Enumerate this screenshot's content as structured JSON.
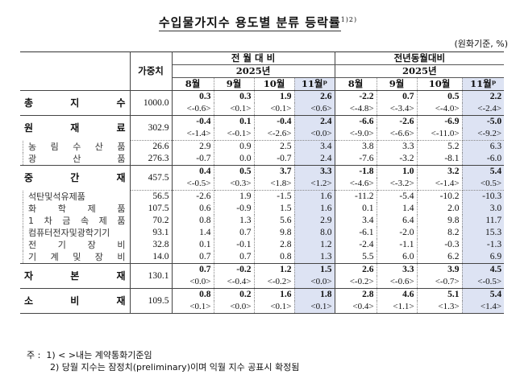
{
  "title": "수입물가지수 용도별 분류 등락률",
  "title_sup": "1)2)",
  "unit": "(원화기준, %)",
  "header": {
    "weight_label": "가중치",
    "group1": "전 월 대 비",
    "group2": "전년동월대비",
    "year1": "2025년",
    "year2": "2025년",
    "months": [
      "8월",
      "9월",
      "10월",
      "11월ᵖ",
      "8월",
      "9월",
      "10월",
      "11월ᵖ"
    ]
  },
  "rows": [
    {
      "label": [
        "총",
        "지",
        "수"
      ],
      "weight": "1000.0",
      "level": "main",
      "values": [
        "0.3",
        "0.3",
        "1.9",
        "2.6",
        "-2.2",
        "0.7",
        "0.5",
        "2.2"
      ],
      "contract": [
        "<-0.6>",
        "<0.1>",
        "<0.1>",
        "<0.6>",
        "<-4.8>",
        "<-3.4>",
        "<-4.0>",
        "<-2.4>"
      ]
    },
    {
      "label": [
        "원",
        "재",
        "료"
      ],
      "weight": "302.9",
      "level": "main",
      "values": [
        "-0.4",
        "0.1",
        "-0.4",
        "2.4",
        "-6.6",
        "-2.6",
        "-6.9",
        "-5.0"
      ],
      "contract": [
        "<-1.4>",
        "<-0.1>",
        "<-2.6>",
        "<0.0>",
        "<-9.0>",
        "<-6.6>",
        "<-11.0>",
        "<-9.2>"
      ]
    },
    {
      "label": [
        "농",
        "림",
        "수",
        "산",
        "품"
      ],
      "weight": "26.6",
      "level": "sub",
      "values": [
        "2.9",
        "0.9",
        "2.5",
        "3.4",
        "3.8",
        "3.3",
        "5.2",
        "6.3"
      ]
    },
    {
      "label": [
        "광",
        "산",
        "품"
      ],
      "weight": "276.3",
      "level": "sub",
      "values": [
        "-0.7",
        "0.0",
        "-0.7",
        "2.4",
        "-7.6",
        "-3.2",
        "-8.1",
        "-6.0"
      ]
    },
    {
      "label": [
        "중",
        "간",
        "재"
      ],
      "weight": "457.5",
      "level": "main",
      "values": [
        "0.4",
        "0.5",
        "3.7",
        "3.3",
        "-1.8",
        "1.0",
        "3.2",
        "5.4"
      ],
      "contract": [
        "<-0.5>",
        "<0.3>",
        "<1.8>",
        "<1.2>",
        "<-4.6>",
        "<-3.2>",
        "<-1.4>",
        "<0.5>"
      ]
    },
    {
      "label": [
        "석탄및석유제품"
      ],
      "weight": "56.5",
      "level": "sub",
      "values": [
        "-2.6",
        "1.9",
        "-1.5",
        "1.6",
        "-11.2",
        "-5.4",
        "-10.2",
        "-10.3"
      ]
    },
    {
      "label": [
        "화",
        "학",
        "제",
        "품"
      ],
      "weight": "107.5",
      "level": "sub",
      "values": [
        "0.6",
        "-0.9",
        "1.5",
        "1.6",
        "0.1",
        "1.4",
        "2.0",
        "3.0"
      ]
    },
    {
      "label": [
        "1",
        "차",
        "금",
        "속",
        "제",
        "품"
      ],
      "weight": "70.2",
      "level": "sub",
      "values": [
        "0.8",
        "1.3",
        "5.6",
        "2.9",
        "3.4",
        "6.4",
        "9.8",
        "11.7"
      ]
    },
    {
      "label": [
        "컴퓨터전자및광학기기"
      ],
      "weight": "93.1",
      "level": "sub",
      "values": [
        "1.4",
        "0.7",
        "9.8",
        "8.0",
        "-6.1",
        "-2.0",
        "8.2",
        "15.3"
      ]
    },
    {
      "label": [
        "전",
        "기",
        "장",
        "비"
      ],
      "weight": "32.8",
      "level": "sub",
      "values": [
        "0.1",
        "-0.1",
        "2.8",
        "1.2",
        "-2.4",
        "-1.1",
        "-0.3",
        "-1.3"
      ]
    },
    {
      "label": [
        "기",
        "계",
        "및",
        "장",
        "비"
      ],
      "weight": "14.0",
      "level": "sub",
      "values": [
        "0.7",
        "0.7",
        "0.8",
        "1.3",
        "5.5",
        "6.0",
        "6.2",
        "6.9"
      ]
    },
    {
      "label": [
        "자",
        "본",
        "재"
      ],
      "weight": "130.1",
      "level": "main",
      "values": [
        "0.7",
        "-0.2",
        "1.2",
        "1.5",
        "2.6",
        "3.3",
        "3.9",
        "4.5"
      ],
      "contract": [
        "<0.0>",
        "<-0.4>",
        "<-0.2>",
        "<0.0>",
        "<-0.2>",
        "<-0.6>",
        "<-0.7>",
        "<-0.5>"
      ]
    },
    {
      "label": [
        "소",
        "비",
        "재"
      ],
      "weight": "109.5",
      "level": "main",
      "values": [
        "0.8",
        "0.2",
        "1.6",
        "1.8",
        "2.8",
        "4.6",
        "5.1",
        "5.4"
      ],
      "contract": [
        "<0.1>",
        "<0.0>",
        "<0.1>",
        "<0.1>",
        "<0.4>",
        "<1.1>",
        "<1.3>",
        "<1.4>"
      ]
    }
  ],
  "notes": {
    "prefix": "주 :",
    "note1": "1) < >내는 계약통화기준임",
    "note2": "2) 당월 지수는 잠정치(preliminary)이며 익월 지수 공표시 확정됨"
  },
  "colors": {
    "highlight": "#dde3f3",
    "border": "#444444"
  }
}
